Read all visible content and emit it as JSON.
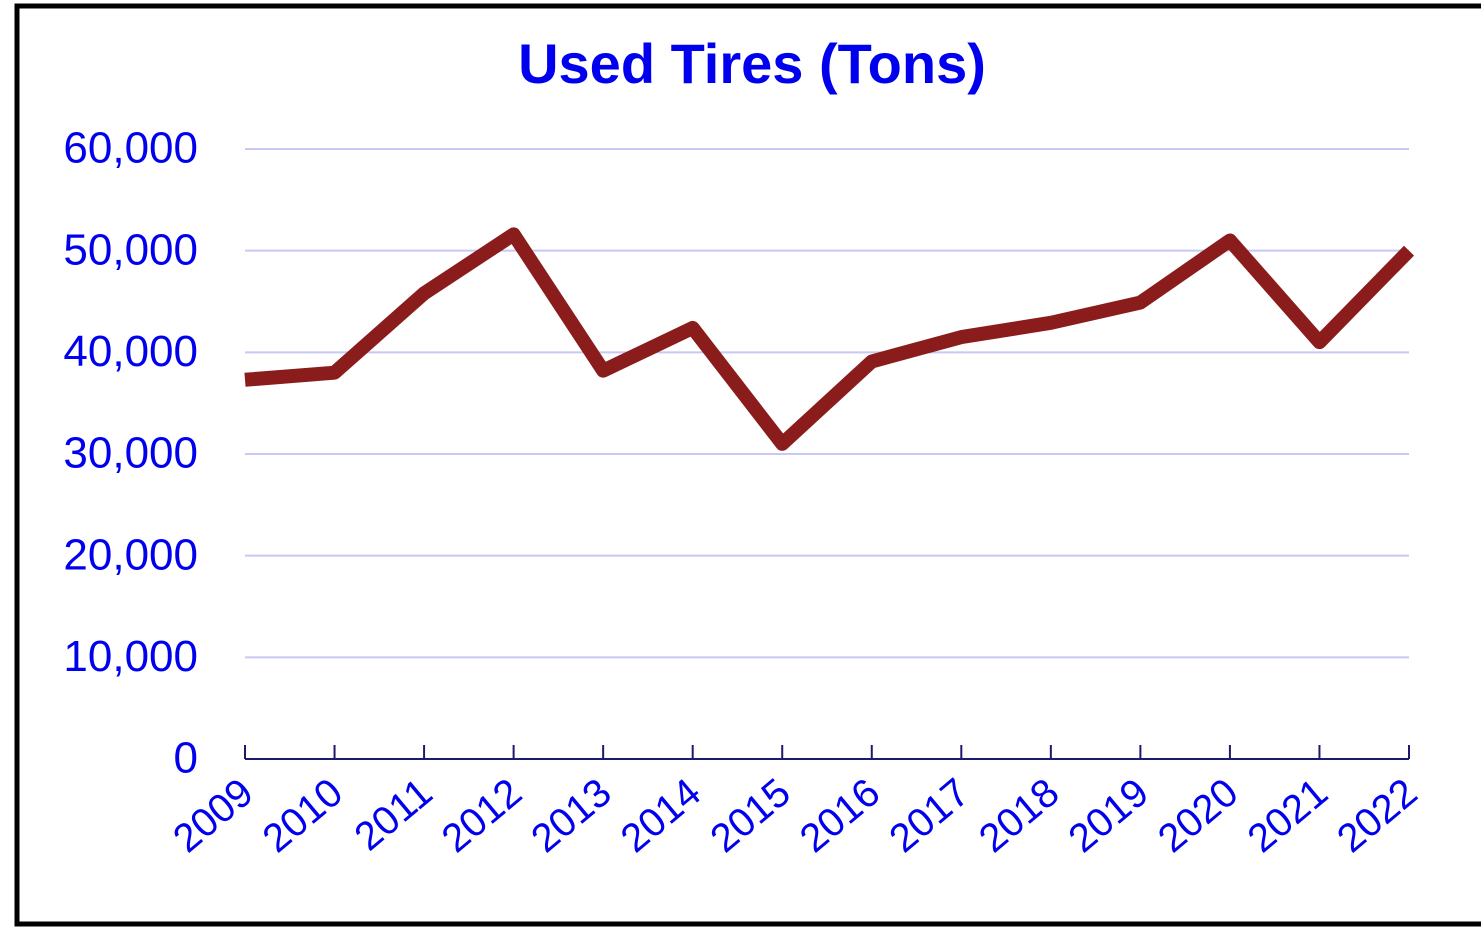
{
  "chart_data": {
    "type": "line",
    "title": "Used Tires (Tons)",
    "categories": [
      "2009",
      "2010",
      "2011",
      "2012",
      "2013",
      "2014",
      "2015",
      "2016",
      "2017",
      "2018",
      "2019",
      "2020",
      "2021",
      "2022"
    ],
    "series": [
      {
        "name": "Used Tires",
        "color": "#8b1c1c",
        "values": [
          37300,
          38000,
          45800,
          51600,
          38200,
          42400,
          31000,
          39100,
          41500,
          42900,
          44900,
          51000,
          41000,
          50000
        ]
      }
    ],
    "ylim": [
      0,
      60000
    ],
    "yticks": [
      0,
      {
        "value": 10000,
        "label": "10,000"
      },
      {
        "value": 20000,
        "label": "20,000"
      },
      {
        "value": 30000,
        "label": "30,000"
      },
      {
        "value": 40000,
        "label": "40,000"
      },
      {
        "value": 50000,
        "label": "50,000"
      },
      {
        "value": 60000,
        "label": "60,000"
      }
    ],
    "grid": true
  }
}
